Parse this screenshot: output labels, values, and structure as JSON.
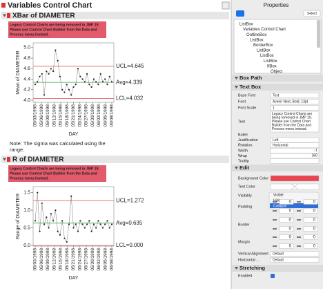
{
  "title": "Variables Control Chart",
  "charts": [
    {
      "heading": "XBar of DIAMETER",
      "warning": [
        "Legacy Control Charts are being removed in JMP 19.",
        "Please use Control Chart Builder from the Data and",
        "Process menu instead."
      ],
      "ylabel": "Mean of DIAMETER",
      "xlabel": "DAY",
      "ylim": [
        3.96,
        5.09
      ],
      "yticks": [
        {
          "value": 4,
          "label": "4.0"
        },
        {
          "value": 4.2,
          "label": "4.2"
        },
        {
          "value": 4.4,
          "label": "4.4"
        },
        {
          "value": 4.6,
          "label": "4.6"
        },
        {
          "value": 4.8,
          "label": "4.8"
        },
        {
          "value": 5,
          "label": "5.0"
        }
      ],
      "limits": [
        {
          "value": 4.645,
          "label": "UCL=4.645",
          "color": "#e0474c"
        },
        {
          "value": 4.339,
          "label": "Avg=4.339",
          "color": "#3aa63a"
        },
        {
          "value": 4.032,
          "label": "LCL=4.032",
          "color": "#e0474c"
        }
      ],
      "categories": [
        "05/03/1998",
        "05/06/1998",
        "05/09/1998",
        "05/12/1998",
        "05/15/1998",
        "05/18/1998",
        "05/21/1998",
        "05/24/1998",
        "05/27/1998",
        "05/30/1998",
        "06/02/1998",
        "06/05/1998",
        "06/08/1998"
      ],
      "values": [
        4.3,
        4.35,
        4.45,
        4.5,
        4.1,
        4.55,
        4.5,
        4.6,
        4.55,
        4.95,
        4.75,
        4.45,
        4.2,
        4.15,
        4.3,
        4.2,
        4.1,
        4.25,
        4.3,
        4.6,
        4.45,
        4.4,
        4.35,
        4.5,
        4.3,
        4.25,
        4.4,
        4.35,
        4.3,
        4.5,
        4.35,
        4.4,
        4.3,
        4.45,
        4.35
      ]
    },
    {
      "heading": "R of DIAMETER",
      "warning": [
        "Legacy Control Charts are being removed in JMP 19.",
        "Please use Control Chart Builder from the Data and",
        "Process menu instead."
      ],
      "ylabel": "Range of DIAMETER",
      "xlabel": "DAY",
      "ylim": [
        -0.02,
        1.67
      ],
      "yticks": [
        {
          "value": 0,
          "label": "0.0"
        },
        {
          "value": 0.5,
          "label": "0.5"
        },
        {
          "value": 1,
          "label": "1.0"
        },
        {
          "value": 1.5,
          "label": "1.5"
        }
      ],
      "limits": [
        {
          "value": 1.272,
          "label": "UCL=1.272",
          "color": "#e0474c"
        },
        {
          "value": 0.635,
          "label": "Avg=0.635",
          "color": "#3aa63a"
        },
        {
          "value": 0,
          "label": "LCL=0.000",
          "color": "#e0474c"
        }
      ],
      "categories": [
        "05/03/1998",
        "05/06/1998",
        "05/09/1998",
        "05/12/1998",
        "05/15/1998",
        "05/18/1998",
        "05/21/1998",
        "05/24/1998",
        "05/27/1998",
        "05/30/1998",
        "06/02/1998",
        "06/05/1998",
        "06/08/1998"
      ],
      "values": [
        0.7,
        1.5,
        0.4,
        1.2,
        0.6,
        0.8,
        0.5,
        0.9,
        0.7,
        1.0,
        0.4,
        0.3,
        0.7,
        0.2,
        0.1,
        0.6,
        1.4,
        0.5,
        0.6,
        0.4,
        0.7,
        0.6,
        0.5,
        0.6,
        0.7,
        0.4,
        0.6,
        0.5,
        0.7,
        0.6,
        0.5,
        0.6,
        0.7,
        0.5,
        0.6
      ]
    }
  ],
  "note": [
    "Note: The sigma was calculated using the",
    "range."
  ],
  "properties": {
    "title": "Properties",
    "select": "Select",
    "tree": [
      "ListBox",
      "Variables Control Chart",
      "OutlineBox",
      "ListBox",
      "BorderBox",
      "ListBox",
      "ListBox",
      "ListBox",
      "IfBox",
      "Object"
    ],
    "box_path": "Box Path",
    "text_box": {
      "heading": "Text Box",
      "rows": [
        [
          "Base Font",
          "Text"
        ],
        [
          "Font",
          "Avenir Next, Bold, 13pt"
        ],
        [
          "Font Scale",
          "1"
        ]
      ],
      "text_label": "Text",
      "text": [
        "Legacy Control Charts are",
        "being removed in JMP 19.",
        "Please use Control Chart",
        "Builder from the Data and",
        "Process menu instead."
      ],
      "rows2": [
        [
          "Bullet",
          ""
        ],
        [
          "Justification",
          "Left"
        ],
        [
          "Rotation",
          "Horizontal"
        ],
        [
          "Width",
          "-1"
        ],
        [
          "Wrap",
          "360"
        ],
        [
          "Tooltip",
          ""
        ]
      ]
    },
    "edit": {
      "heading": "Edit",
      "background_color": "Background Color",
      "text_color": "Text Color",
      "visibility": "Visibility",
      "visibility_options": [
        "Visible",
        "Hidden",
        "Collapse"
      ],
      "padding": "Padding",
      "padding_values": [
        0,
        0,
        0,
        0
      ],
      "border": "Border",
      "border_values": [
        0,
        0,
        0,
        0
      ],
      "margin": "Margin",
      "margin_values": [
        0,
        0,
        0,
        0
      ],
      "vertical_alignment": [
        "Vertical Alignment",
        "Default"
      ],
      "horizontal": [
        "Horizontal ...",
        "Default"
      ]
    },
    "stretching": {
      "heading": "Stretching",
      "enabled": "Enabled"
    }
  }
}
